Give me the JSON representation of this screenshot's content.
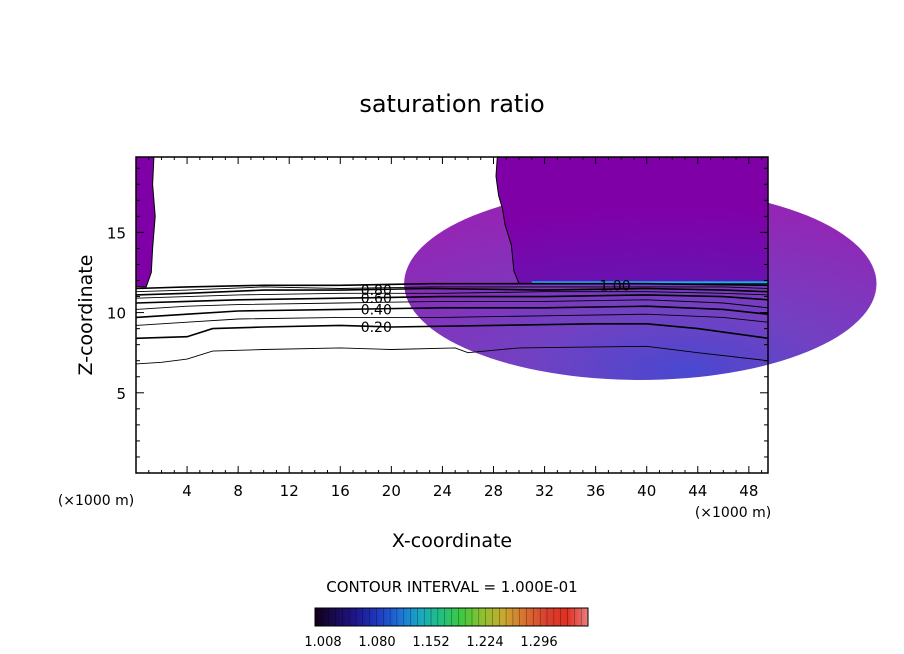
{
  "chart_data": {
    "type": "contour",
    "title": "saturation ratio",
    "xlabel": "X-coordinate",
    "ylabel": "Z-coordinate",
    "x_unit_label": "(×1000 m)",
    "xlim": [
      0,
      49.5
    ],
    "ylim": [
      0,
      19.7
    ],
    "x_ticks": [
      4,
      8,
      12,
      16,
      20,
      24,
      28,
      32,
      36,
      40,
      44,
      48
    ],
    "y_ticks": [
      5,
      10,
      15
    ],
    "contour_interval_text": "CONTOUR INTERVAL = 1.000E-01",
    "contour_labels": [
      {
        "text": "0.20",
        "x": 17.6,
        "z": 9.1
      },
      {
        "text": "0.40",
        "x": 17.6,
        "z": 10.2
      },
      {
        "text": "0.60",
        "x": 17.6,
        "z": 10.9
      },
      {
        "text": "0.80",
        "x": 17.6,
        "z": 11.4
      },
      {
        "text": "1.00",
        "x": 36.3,
        "z": 11.7
      }
    ],
    "contour_lines": [
      {
        "level": 0.1,
        "x": [
          0,
          2,
          4,
          6,
          10,
          16,
          20,
          25,
          26,
          30,
          40,
          44,
          49.5
        ],
        "z": [
          6.8,
          6.9,
          7.1,
          7.6,
          7.7,
          7.8,
          7.7,
          7.8,
          7.5,
          7.8,
          7.9,
          7.5,
          7.0
        ]
      },
      {
        "level": 0.2,
        "x": [
          0,
          4,
          6,
          10,
          16,
          20,
          28,
          36,
          40,
          44,
          49.5
        ],
        "z": [
          8.4,
          8.5,
          9.0,
          9.1,
          9.2,
          9.1,
          9.2,
          9.3,
          9.3,
          9.0,
          8.4
        ]
      },
      {
        "level": 0.3,
        "x": [
          0,
          4,
          8,
          16,
          24,
          32,
          40,
          46,
          49.5
        ],
        "z": [
          9.2,
          9.4,
          9.6,
          9.7,
          9.7,
          9.8,
          9.9,
          9.7,
          9.4
        ]
      },
      {
        "level": 0.4,
        "x": [
          0,
          4,
          8,
          16,
          24,
          32,
          40,
          46,
          49.5
        ],
        "z": [
          9.7,
          9.9,
          10.1,
          10.2,
          10.3,
          10.3,
          10.4,
          10.2,
          9.9
        ]
      },
      {
        "level": 0.5,
        "x": [
          0,
          4,
          8,
          16,
          24,
          32,
          40,
          46,
          49.5
        ],
        "z": [
          10.2,
          10.4,
          10.5,
          10.6,
          10.7,
          10.7,
          10.8,
          10.6,
          10.3
        ]
      },
      {
        "level": 0.6,
        "x": [
          0,
          4,
          8,
          16,
          24,
          32,
          40,
          46,
          49.5
        ],
        "z": [
          10.6,
          10.7,
          10.8,
          10.9,
          11.0,
          11.0,
          11.1,
          11.0,
          10.8
        ]
      },
      {
        "level": 0.7,
        "x": [
          0,
          4,
          8,
          16,
          24,
          32,
          40,
          46,
          49.5
        ],
        "z": [
          10.9,
          11.0,
          11.1,
          11.2,
          11.2,
          11.3,
          11.3,
          11.2,
          11.1
        ]
      },
      {
        "level": 0.8,
        "x": [
          0,
          4,
          10,
          16,
          23,
          32,
          40,
          46,
          49.5
        ],
        "z": [
          11.1,
          11.2,
          11.4,
          11.4,
          11.5,
          11.4,
          11.5,
          11.4,
          11.3
        ]
      },
      {
        "level": 0.9,
        "x": [
          0,
          4,
          10,
          16,
          23,
          32,
          40,
          46,
          49.5
        ],
        "z": [
          11.3,
          11.4,
          11.6,
          11.5,
          11.6,
          11.6,
          11.6,
          11.6,
          11.5
        ]
      },
      {
        "level": 1.0,
        "x": [
          0,
          4,
          10,
          16,
          23,
          30,
          40,
          49.5
        ],
        "z": [
          11.5,
          11.6,
          11.7,
          11.7,
          11.8,
          11.8,
          11.8,
          11.7
        ]
      }
    ],
    "colorbar": {
      "tick_labels": [
        "1.008",
        "1.080",
        "1.152",
        "1.224",
        "1.296"
      ],
      "colors": [
        "#100018",
        "#1a0a55",
        "#1e1890",
        "#1f3ac0",
        "#1e70d8",
        "#1aa8c0",
        "#22c080",
        "#40c840",
        "#90c030",
        "#c8a830",
        "#d87030",
        "#d84030",
        "#e03020",
        "#e88080"
      ]
    },
    "colors": {
      "supersat_fill": "#8000a8",
      "core_dark": "#5820b8",
      "core_blue": "#2828c8",
      "bright_band": "#00c8ff"
    }
  }
}
